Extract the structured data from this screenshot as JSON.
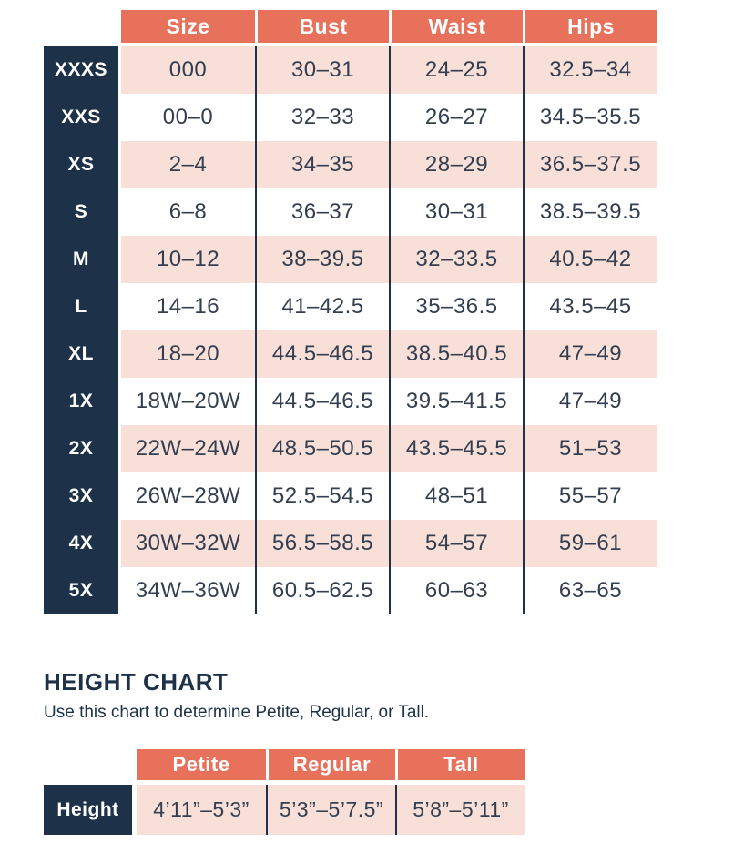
{
  "colors": {
    "coral": "#E7715A",
    "navy": "#1D3148",
    "pink": "#F8DFD8",
    "cell_text": "#333E50",
    "white": "#FFFFFF"
  },
  "chart_data": [
    {
      "type": "table",
      "name": "size-chart",
      "columns": [
        "Size",
        "Bust",
        "Waist",
        "Hips"
      ],
      "row_labels": [
        "XXXS",
        "XXS",
        "XS",
        "S",
        "M",
        "L",
        "XL",
        "1X",
        "2X",
        "3X",
        "4X",
        "5X"
      ],
      "rows": [
        [
          "000",
          "30–31",
          "24–25",
          "32.5–34"
        ],
        [
          "00–0",
          "32–33",
          "26–27",
          "34.5–35.5"
        ],
        [
          "2–4",
          "34–35",
          "28–29",
          "36.5–37.5"
        ],
        [
          "6–8",
          "36–37",
          "30–31",
          "38.5–39.5"
        ],
        [
          "10–12",
          "38–39.5",
          "32–33.5",
          "40.5–42"
        ],
        [
          "14–16",
          "41–42.5",
          "35–36.5",
          "43.5–45"
        ],
        [
          "18–20",
          "44.5–46.5",
          "38.5–40.5",
          "47–49"
        ],
        [
          "18W–20W",
          "44.5–46.5",
          "39.5–41.5",
          "47–49"
        ],
        [
          "22W–24W",
          "48.5–50.5",
          "43.5–45.5",
          "51–53"
        ],
        [
          "26W–28W",
          "52.5–54.5",
          "48–51",
          "55–57"
        ],
        [
          "30W–32W",
          "56.5–58.5",
          "54–57",
          "59–61"
        ],
        [
          "34W–36W",
          "60.5–62.5",
          "60–63",
          "63–65"
        ]
      ],
      "layout": {
        "striping": "alternating pink/white starting pink",
        "header_bg": "coral",
        "row_label_bg": "navy"
      }
    },
    {
      "type": "table",
      "name": "height-chart",
      "title": "HEIGHT CHART",
      "subtitle": "Use this chart to determine Petite, Regular, or Tall.",
      "columns": [
        "Petite",
        "Regular",
        "Tall"
      ],
      "row_labels": [
        "Height"
      ],
      "rows": [
        [
          "4’11”–5’3”",
          "5’3”–5’7.5”",
          "5’8”–5’11”"
        ]
      ],
      "layout": {
        "row_bg": "pink",
        "header_bg": "coral",
        "row_label_bg": "navy"
      }
    }
  ]
}
